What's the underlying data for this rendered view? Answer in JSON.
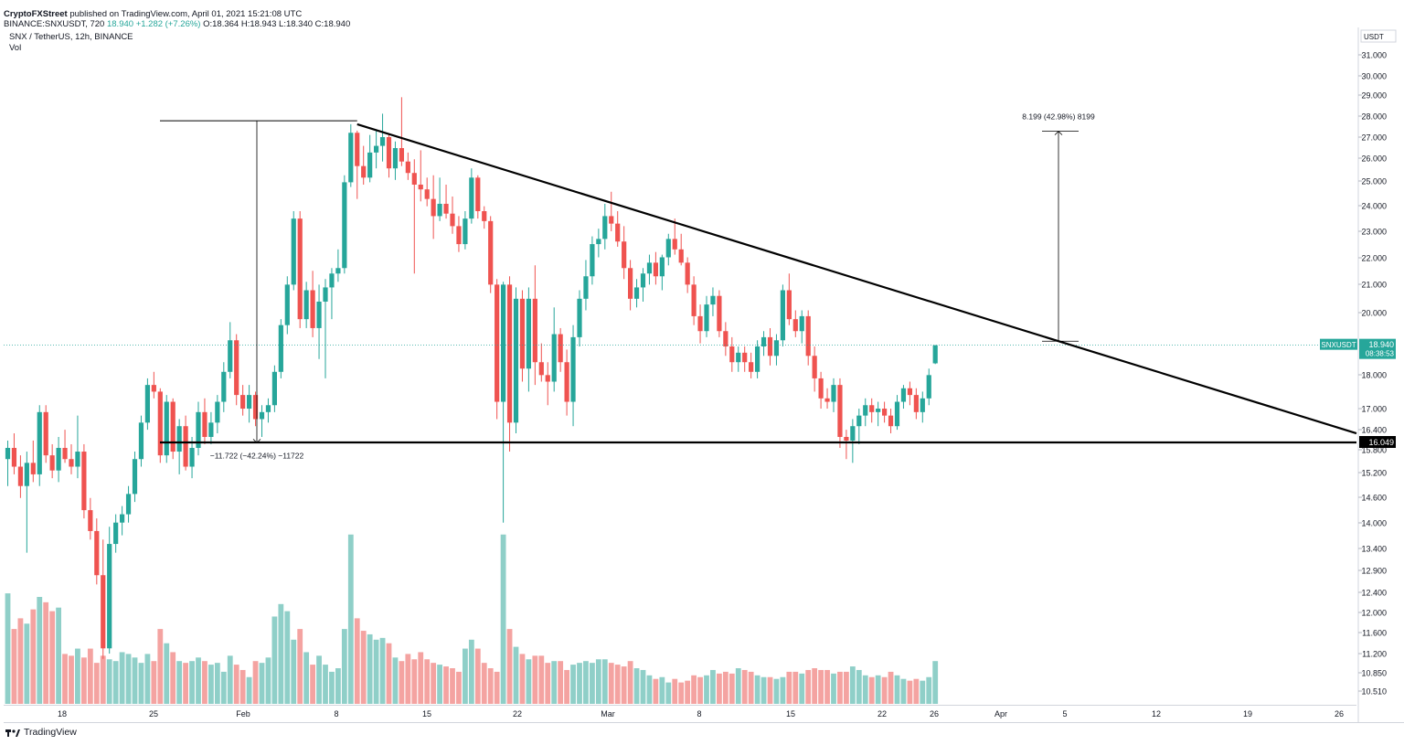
{
  "header": {
    "publisher": "CryptoFXStreet",
    "published_text": "published on TradingView.com, April 01, 2021 15:21:08 UTC",
    "ticker_line": "BINANCE:SNXUSDT, 720",
    "last": "18.940",
    "change": "+1.282 (+7.26%)",
    "o": "O:18.364",
    "h": "H:18.943",
    "l": "L:18.340",
    "c": "C:18.940"
  },
  "symbol_title": "SNX / TetherUS, 12h, BINANCE",
  "vol_label": "Vol",
  "footer": {
    "brand": "TradingView"
  },
  "price_axis": {
    "currency": "USDT",
    "ticks": [
      "31.000",
      "30.000",
      "29.000",
      "28.000",
      "27.000",
      "26.000",
      "25.000",
      "24.000",
      "23.000",
      "22.000",
      "21.000",
      "20.000",
      "18.000",
      "17.000",
      "16.400",
      "15.800",
      "15.200",
      "14.600",
      "14.000",
      "13.400",
      "12.900",
      "12.400",
      "12.000",
      "11.600",
      "11.200",
      "10.850",
      "10.510"
    ],
    "last_price_label": {
      "symbol": "SNXUSDT",
      "price": "18.940",
      "countdown": "08:38:53"
    },
    "support_label": "16.049",
    "scale": "log"
  },
  "time_axis": {
    "labels": [
      "18",
      "25",
      "Feb",
      "8",
      "15",
      "22",
      "Mar",
      "8",
      "15",
      "22",
      "26",
      "Apr",
      "5",
      "12",
      "19",
      "26"
    ]
  },
  "chart_data": {
    "type": "candlestick",
    "symbol": "SNX / TetherUS",
    "interval": "12h",
    "exchange": "BINANCE",
    "colors": {
      "up": "#26a69a",
      "down": "#ef5350",
      "vol_up": "#8fcfc8",
      "vol_down": "#f4a3a1",
      "line": "#000000"
    },
    "candles": [
      {
        "o": 15.6,
        "h": 16.1,
        "l": 14.9,
        "c": 15.9
      },
      {
        "o": 15.9,
        "h": 16.3,
        "l": 15.2,
        "c": 15.4
      },
      {
        "o": 15.4,
        "h": 15.7,
        "l": 14.6,
        "c": 14.9
      },
      {
        "o": 14.9,
        "h": 15.8,
        "l": 13.3,
        "c": 15.5
      },
      {
        "o": 15.5,
        "h": 16.1,
        "l": 15.0,
        "c": 15.2
      },
      {
        "o": 15.2,
        "h": 17.1,
        "l": 14.9,
        "c": 16.9
      },
      {
        "o": 16.9,
        "h": 17.1,
        "l": 15.5,
        "c": 15.7
      },
      {
        "o": 15.7,
        "h": 16.0,
        "l": 15.1,
        "c": 15.3
      },
      {
        "o": 15.3,
        "h": 16.2,
        "l": 15.0,
        "c": 15.9
      },
      {
        "o": 15.9,
        "h": 16.4,
        "l": 15.5,
        "c": 15.6
      },
      {
        "o": 15.6,
        "h": 16.0,
        "l": 15.2,
        "c": 15.4
      },
      {
        "o": 15.4,
        "h": 16.8,
        "l": 15.1,
        "c": 15.8
      },
      {
        "o": 15.8,
        "h": 16.0,
        "l": 14.1,
        "c": 14.3
      },
      {
        "o": 14.3,
        "h": 14.6,
        "l": 13.6,
        "c": 13.8
      },
      {
        "o": 13.8,
        "h": 14.1,
        "l": 12.6,
        "c": 12.8
      },
      {
        "o": 12.8,
        "h": 13.6,
        "l": 11.1,
        "c": 11.3
      },
      {
        "o": 11.3,
        "h": 13.9,
        "l": 11.2,
        "c": 13.5
      },
      {
        "o": 13.5,
        "h": 14.2,
        "l": 13.3,
        "c": 14.0
      },
      {
        "o": 14.0,
        "h": 14.4,
        "l": 13.7,
        "c": 14.2
      },
      {
        "o": 14.2,
        "h": 14.9,
        "l": 14.0,
        "c": 14.7
      },
      {
        "o": 14.7,
        "h": 15.8,
        "l": 14.5,
        "c": 15.6
      },
      {
        "o": 15.6,
        "h": 16.8,
        "l": 15.4,
        "c": 16.6
      },
      {
        "o": 16.6,
        "h": 17.9,
        "l": 16.4,
        "c": 17.7
      },
      {
        "o": 17.7,
        "h": 18.1,
        "l": 17.3,
        "c": 17.5
      },
      {
        "o": 17.5,
        "h": 17.6,
        "l": 15.5,
        "c": 15.7
      },
      {
        "o": 15.7,
        "h": 17.4,
        "l": 15.5,
        "c": 17.2
      },
      {
        "o": 17.2,
        "h": 17.3,
        "l": 15.6,
        "c": 15.8
      },
      {
        "o": 15.8,
        "h": 16.7,
        "l": 15.2,
        "c": 16.5
      },
      {
        "o": 16.5,
        "h": 16.8,
        "l": 15.3,
        "c": 15.4
      },
      {
        "o": 15.4,
        "h": 16.2,
        "l": 15.1,
        "c": 15.9
      },
      {
        "o": 15.9,
        "h": 17.2,
        "l": 15.7,
        "c": 16.9
      },
      {
        "o": 16.9,
        "h": 17.3,
        "l": 16.0,
        "c": 16.2
      },
      {
        "o": 16.2,
        "h": 16.9,
        "l": 16.0,
        "c": 16.6
      },
      {
        "o": 16.6,
        "h": 17.4,
        "l": 16.3,
        "c": 17.2
      },
      {
        "o": 17.2,
        "h": 18.4,
        "l": 16.9,
        "c": 18.1
      },
      {
        "o": 18.1,
        "h": 19.7,
        "l": 17.9,
        "c": 19.1
      },
      {
        "o": 19.1,
        "h": 19.3,
        "l": 17.1,
        "c": 17.4
      },
      {
        "o": 17.4,
        "h": 17.7,
        "l": 16.8,
        "c": 17.0
      },
      {
        "o": 17.0,
        "h": 17.7,
        "l": 16.6,
        "c": 17.4
      },
      {
        "o": 17.4,
        "h": 17.5,
        "l": 16.5,
        "c": 16.7
      },
      {
        "o": 16.7,
        "h": 17.1,
        "l": 16.2,
        "c": 16.9
      },
      {
        "o": 16.9,
        "h": 17.3,
        "l": 16.6,
        "c": 17.1
      },
      {
        "o": 17.1,
        "h": 18.3,
        "l": 16.9,
        "c": 18.1
      },
      {
        "o": 18.1,
        "h": 19.8,
        "l": 17.9,
        "c": 19.6
      },
      {
        "o": 19.6,
        "h": 21.3,
        "l": 19.3,
        "c": 21.0
      },
      {
        "o": 21.0,
        "h": 23.8,
        "l": 20.8,
        "c": 23.5
      },
      {
        "o": 23.5,
        "h": 23.8,
        "l": 19.5,
        "c": 19.8
      },
      {
        "o": 19.8,
        "h": 21.1,
        "l": 19.5,
        "c": 20.8
      },
      {
        "o": 20.8,
        "h": 21.5,
        "l": 19.2,
        "c": 19.5
      },
      {
        "o": 19.5,
        "h": 21.0,
        "l": 18.5,
        "c": 20.4
      },
      {
        "o": 20.4,
        "h": 21.2,
        "l": 17.9,
        "c": 20.9
      },
      {
        "o": 20.9,
        "h": 21.6,
        "l": 19.8,
        "c": 21.4
      },
      {
        "o": 21.4,
        "h": 22.3,
        "l": 21.1,
        "c": 21.6
      },
      {
        "o": 21.6,
        "h": 25.3,
        "l": 21.4,
        "c": 25.0
      },
      {
        "o": 25.0,
        "h": 27.6,
        "l": 24.8,
        "c": 27.2
      },
      {
        "o": 27.2,
        "h": 27.3,
        "l": 24.3,
        "c": 25.7
      },
      {
        "o": 25.7,
        "h": 26.6,
        "l": 24.9,
        "c": 25.2
      },
      {
        "o": 25.2,
        "h": 27.1,
        "l": 25.0,
        "c": 26.3
      },
      {
        "o": 26.3,
        "h": 27.3,
        "l": 25.6,
        "c": 26.6
      },
      {
        "o": 26.6,
        "h": 28.1,
        "l": 25.9,
        "c": 27.0
      },
      {
        "o": 27.0,
        "h": 27.1,
        "l": 25.2,
        "c": 25.6
      },
      {
        "o": 25.6,
        "h": 26.8,
        "l": 25.1,
        "c": 26.5
      },
      {
        "o": 26.5,
        "h": 28.9,
        "l": 25.7,
        "c": 25.9
      },
      {
        "o": 25.9,
        "h": 26.3,
        "l": 25.1,
        "c": 25.4
      },
      {
        "o": 25.4,
        "h": 26.0,
        "l": 21.4,
        "c": 24.9
      },
      {
        "o": 24.9,
        "h": 26.4,
        "l": 24.2,
        "c": 24.7
      },
      {
        "o": 24.7,
        "h": 25.2,
        "l": 24.0,
        "c": 24.3
      },
      {
        "o": 24.3,
        "h": 25.3,
        "l": 22.7,
        "c": 23.6
      },
      {
        "o": 23.6,
        "h": 25.2,
        "l": 23.4,
        "c": 24.1
      },
      {
        "o": 24.1,
        "h": 24.9,
        "l": 23.5,
        "c": 23.7
      },
      {
        "o": 23.7,
        "h": 24.4,
        "l": 22.9,
        "c": 23.2
      },
      {
        "o": 23.2,
        "h": 23.6,
        "l": 22.2,
        "c": 22.5
      },
      {
        "o": 22.5,
        "h": 23.8,
        "l": 22.3,
        "c": 23.5
      },
      {
        "o": 23.5,
        "h": 25.6,
        "l": 23.3,
        "c": 25.2
      },
      {
        "o": 25.2,
        "h": 25.3,
        "l": 23.5,
        "c": 23.8
      },
      {
        "o": 23.8,
        "h": 24.0,
        "l": 23.1,
        "c": 23.4
      },
      {
        "o": 23.4,
        "h": 23.6,
        "l": 20.7,
        "c": 21.0
      },
      {
        "o": 21.0,
        "h": 21.2,
        "l": 16.7,
        "c": 17.2
      },
      {
        "o": 17.2,
        "h": 21.1,
        "l": 14.0,
        "c": 21.0
      },
      {
        "o": 21.0,
        "h": 21.3,
        "l": 15.8,
        "c": 16.6
      },
      {
        "o": 16.6,
        "h": 20.9,
        "l": 16.3,
        "c": 20.5
      },
      {
        "o": 20.5,
        "h": 20.8,
        "l": 17.8,
        "c": 18.2
      },
      {
        "o": 18.2,
        "h": 20.9,
        "l": 17.5,
        "c": 20.5
      },
      {
        "o": 20.5,
        "h": 21.7,
        "l": 17.7,
        "c": 18.4
      },
      {
        "o": 18.4,
        "h": 19.0,
        "l": 17.8,
        "c": 18.0
      },
      {
        "o": 18.0,
        "h": 18.4,
        "l": 17.1,
        "c": 17.8
      },
      {
        "o": 17.8,
        "h": 20.2,
        "l": 17.5,
        "c": 19.3
      },
      {
        "o": 19.3,
        "h": 19.5,
        "l": 18.1,
        "c": 18.4
      },
      {
        "o": 18.4,
        "h": 18.8,
        "l": 16.8,
        "c": 17.2
      },
      {
        "o": 17.2,
        "h": 19.6,
        "l": 16.5,
        "c": 19.2
      },
      {
        "o": 19.2,
        "h": 20.8,
        "l": 18.9,
        "c": 20.5
      },
      {
        "o": 20.5,
        "h": 21.9,
        "l": 20.1,
        "c": 21.3
      },
      {
        "o": 21.3,
        "h": 22.8,
        "l": 21.0,
        "c": 22.5
      },
      {
        "o": 22.5,
        "h": 23.1,
        "l": 22.0,
        "c": 22.7
      },
      {
        "o": 22.7,
        "h": 24.1,
        "l": 22.3,
        "c": 23.6
      },
      {
        "o": 23.6,
        "h": 24.6,
        "l": 23.0,
        "c": 23.3
      },
      {
        "o": 23.3,
        "h": 23.8,
        "l": 22.4,
        "c": 22.6
      },
      {
        "o": 22.6,
        "h": 23.2,
        "l": 21.2,
        "c": 21.6
      },
      {
        "o": 21.6,
        "h": 21.9,
        "l": 20.1,
        "c": 20.5
      },
      {
        "o": 20.5,
        "h": 21.2,
        "l": 20.2,
        "c": 20.9
      },
      {
        "o": 20.9,
        "h": 21.6,
        "l": 20.4,
        "c": 21.4
      },
      {
        "o": 21.4,
        "h": 22.1,
        "l": 21.0,
        "c": 21.8
      },
      {
        "o": 21.8,
        "h": 22.2,
        "l": 21.0,
        "c": 21.3
      },
      {
        "o": 21.3,
        "h": 22.1,
        "l": 20.8,
        "c": 22.0
      },
      {
        "o": 22.0,
        "h": 22.9,
        "l": 21.7,
        "c": 22.7
      },
      {
        "o": 22.7,
        "h": 23.5,
        "l": 22.1,
        "c": 22.3
      },
      {
        "o": 22.3,
        "h": 22.9,
        "l": 21.7,
        "c": 21.8
      },
      {
        "o": 21.8,
        "h": 22.0,
        "l": 20.7,
        "c": 21.0
      },
      {
        "o": 21.0,
        "h": 21.3,
        "l": 19.6,
        "c": 19.9
      },
      {
        "o": 19.9,
        "h": 20.3,
        "l": 19.0,
        "c": 19.4
      },
      {
        "o": 19.4,
        "h": 20.6,
        "l": 19.2,
        "c": 20.3
      },
      {
        "o": 20.3,
        "h": 20.9,
        "l": 19.9,
        "c": 20.6
      },
      {
        "o": 20.6,
        "h": 20.8,
        "l": 19.2,
        "c": 19.4
      },
      {
        "o": 19.4,
        "h": 19.7,
        "l": 18.6,
        "c": 18.9
      },
      {
        "o": 18.9,
        "h": 19.2,
        "l": 18.1,
        "c": 18.4
      },
      {
        "o": 18.4,
        "h": 18.9,
        "l": 18.1,
        "c": 18.7
      },
      {
        "o": 18.7,
        "h": 18.9,
        "l": 18.1,
        "c": 18.4
      },
      {
        "o": 18.4,
        "h": 18.7,
        "l": 17.9,
        "c": 18.1
      },
      {
        "o": 18.1,
        "h": 19.1,
        "l": 17.9,
        "c": 18.9
      },
      {
        "o": 18.9,
        "h": 19.4,
        "l": 18.6,
        "c": 19.2
      },
      {
        "o": 19.2,
        "h": 19.5,
        "l": 18.3,
        "c": 18.6
      },
      {
        "o": 18.6,
        "h": 19.3,
        "l": 18.3,
        "c": 19.1
      },
      {
        "o": 19.1,
        "h": 21.0,
        "l": 18.9,
        "c": 20.8
      },
      {
        "o": 20.8,
        "h": 21.4,
        "l": 19.6,
        "c": 19.8
      },
      {
        "o": 19.8,
        "h": 20.1,
        "l": 19.2,
        "c": 19.4
      },
      {
        "o": 19.4,
        "h": 20.1,
        "l": 19.0,
        "c": 19.9
      },
      {
        "o": 19.9,
        "h": 20.1,
        "l": 18.3,
        "c": 18.6
      },
      {
        "o": 18.6,
        "h": 18.9,
        "l": 17.5,
        "c": 17.9
      },
      {
        "o": 17.9,
        "h": 18.1,
        "l": 17.0,
        "c": 17.3
      },
      {
        "o": 17.3,
        "h": 17.6,
        "l": 17.0,
        "c": 17.2
      },
      {
        "o": 17.2,
        "h": 17.9,
        "l": 16.9,
        "c": 17.7
      },
      {
        "o": 17.7,
        "h": 17.9,
        "l": 15.9,
        "c": 16.2
      },
      {
        "o": 16.2,
        "h": 16.4,
        "l": 15.6,
        "c": 16.1
      },
      {
        "o": 16.1,
        "h": 16.7,
        "l": 15.5,
        "c": 16.5
      },
      {
        "o": 16.5,
        "h": 17.0,
        "l": 16.0,
        "c": 16.8
      },
      {
        "o": 16.8,
        "h": 17.3,
        "l": 16.5,
        "c": 17.1
      },
      {
        "o": 17.1,
        "h": 17.3,
        "l": 16.6,
        "c": 16.9
      },
      {
        "o": 16.9,
        "h": 17.2,
        "l": 16.5,
        "c": 17.0
      },
      {
        "o": 17.0,
        "h": 17.2,
        "l": 16.6,
        "c": 16.8
      },
      {
        "o": 16.8,
        "h": 17.0,
        "l": 16.3,
        "c": 16.5
      },
      {
        "o": 16.5,
        "h": 17.4,
        "l": 16.4,
        "c": 17.2
      },
      {
        "o": 17.2,
        "h": 17.7,
        "l": 17.0,
        "c": 17.6
      },
      {
        "o": 17.6,
        "h": 17.8,
        "l": 17.1,
        "c": 17.4
      },
      {
        "o": 17.4,
        "h": 17.6,
        "l": 16.7,
        "c": 16.9
      },
      {
        "o": 16.9,
        "h": 17.5,
        "l": 16.6,
        "c": 17.3
      },
      {
        "o": 17.3,
        "h": 18.2,
        "l": 17.1,
        "c": 18.0
      },
      {
        "o": 18.364,
        "h": 18.943,
        "l": 18.34,
        "c": 18.94
      }
    ],
    "volume": [
      62,
      42,
      48,
      45,
      53,
      60,
      57,
      52,
      54,
      28,
      27,
      31,
      26,
      31,
      23,
      27,
      25,
      24,
      29,
      28,
      26,
      23,
      28,
      24,
      42,
      34,
      29,
      24,
      23,
      24,
      26,
      24,
      22,
      23,
      18,
      27,
      22,
      19,
      15,
      24,
      23,
      26,
      49,
      56,
      52,
      36,
      42,
      29,
      22,
      27,
      22,
      18,
      20,
      42,
      95,
      48,
      41,
      39,
      36,
      37,
      34,
      26,
      24,
      28,
      25,
      29,
      25,
      23,
      22,
      21,
      20,
      18,
      31,
      36,
      31,
      23,
      20,
      18,
      95,
      42,
      32,
      28,
      25,
      27,
      27,
      23,
      24,
      24,
      19,
      22,
      23,
      24,
      23,
      25,
      25,
      23,
      22,
      21,
      24,
      20,
      19,
      16,
      14,
      15,
      12,
      14,
      12,
      13,
      16,
      15,
      16,
      19,
      17,
      18,
      17,
      20,
      19,
      18,
      16,
      15,
      15,
      14,
      15,
      18,
      18,
      17,
      19,
      20,
      19,
      19,
      17,
      18,
      18,
      21,
      19,
      16,
      15,
      16,
      15,
      18,
      16,
      14,
      13,
      14,
      13,
      15,
      24
    ],
    "support_line": {
      "price": 16.049,
      "label": "16.049"
    },
    "descending_trendline": {
      "start": {
        "bar": 55,
        "price": 27.6
      },
      "end_price": 16.3
    },
    "measurements": [
      {
        "label": "−11.722 (−42.24%) −11722",
        "from_price": 27.76,
        "to_price": 16.04
      },
      {
        "label": "8.199 (42.98%) 8199",
        "from_price": 19.07,
        "to_price": 27.27
      }
    ],
    "last_price": 18.94
  }
}
